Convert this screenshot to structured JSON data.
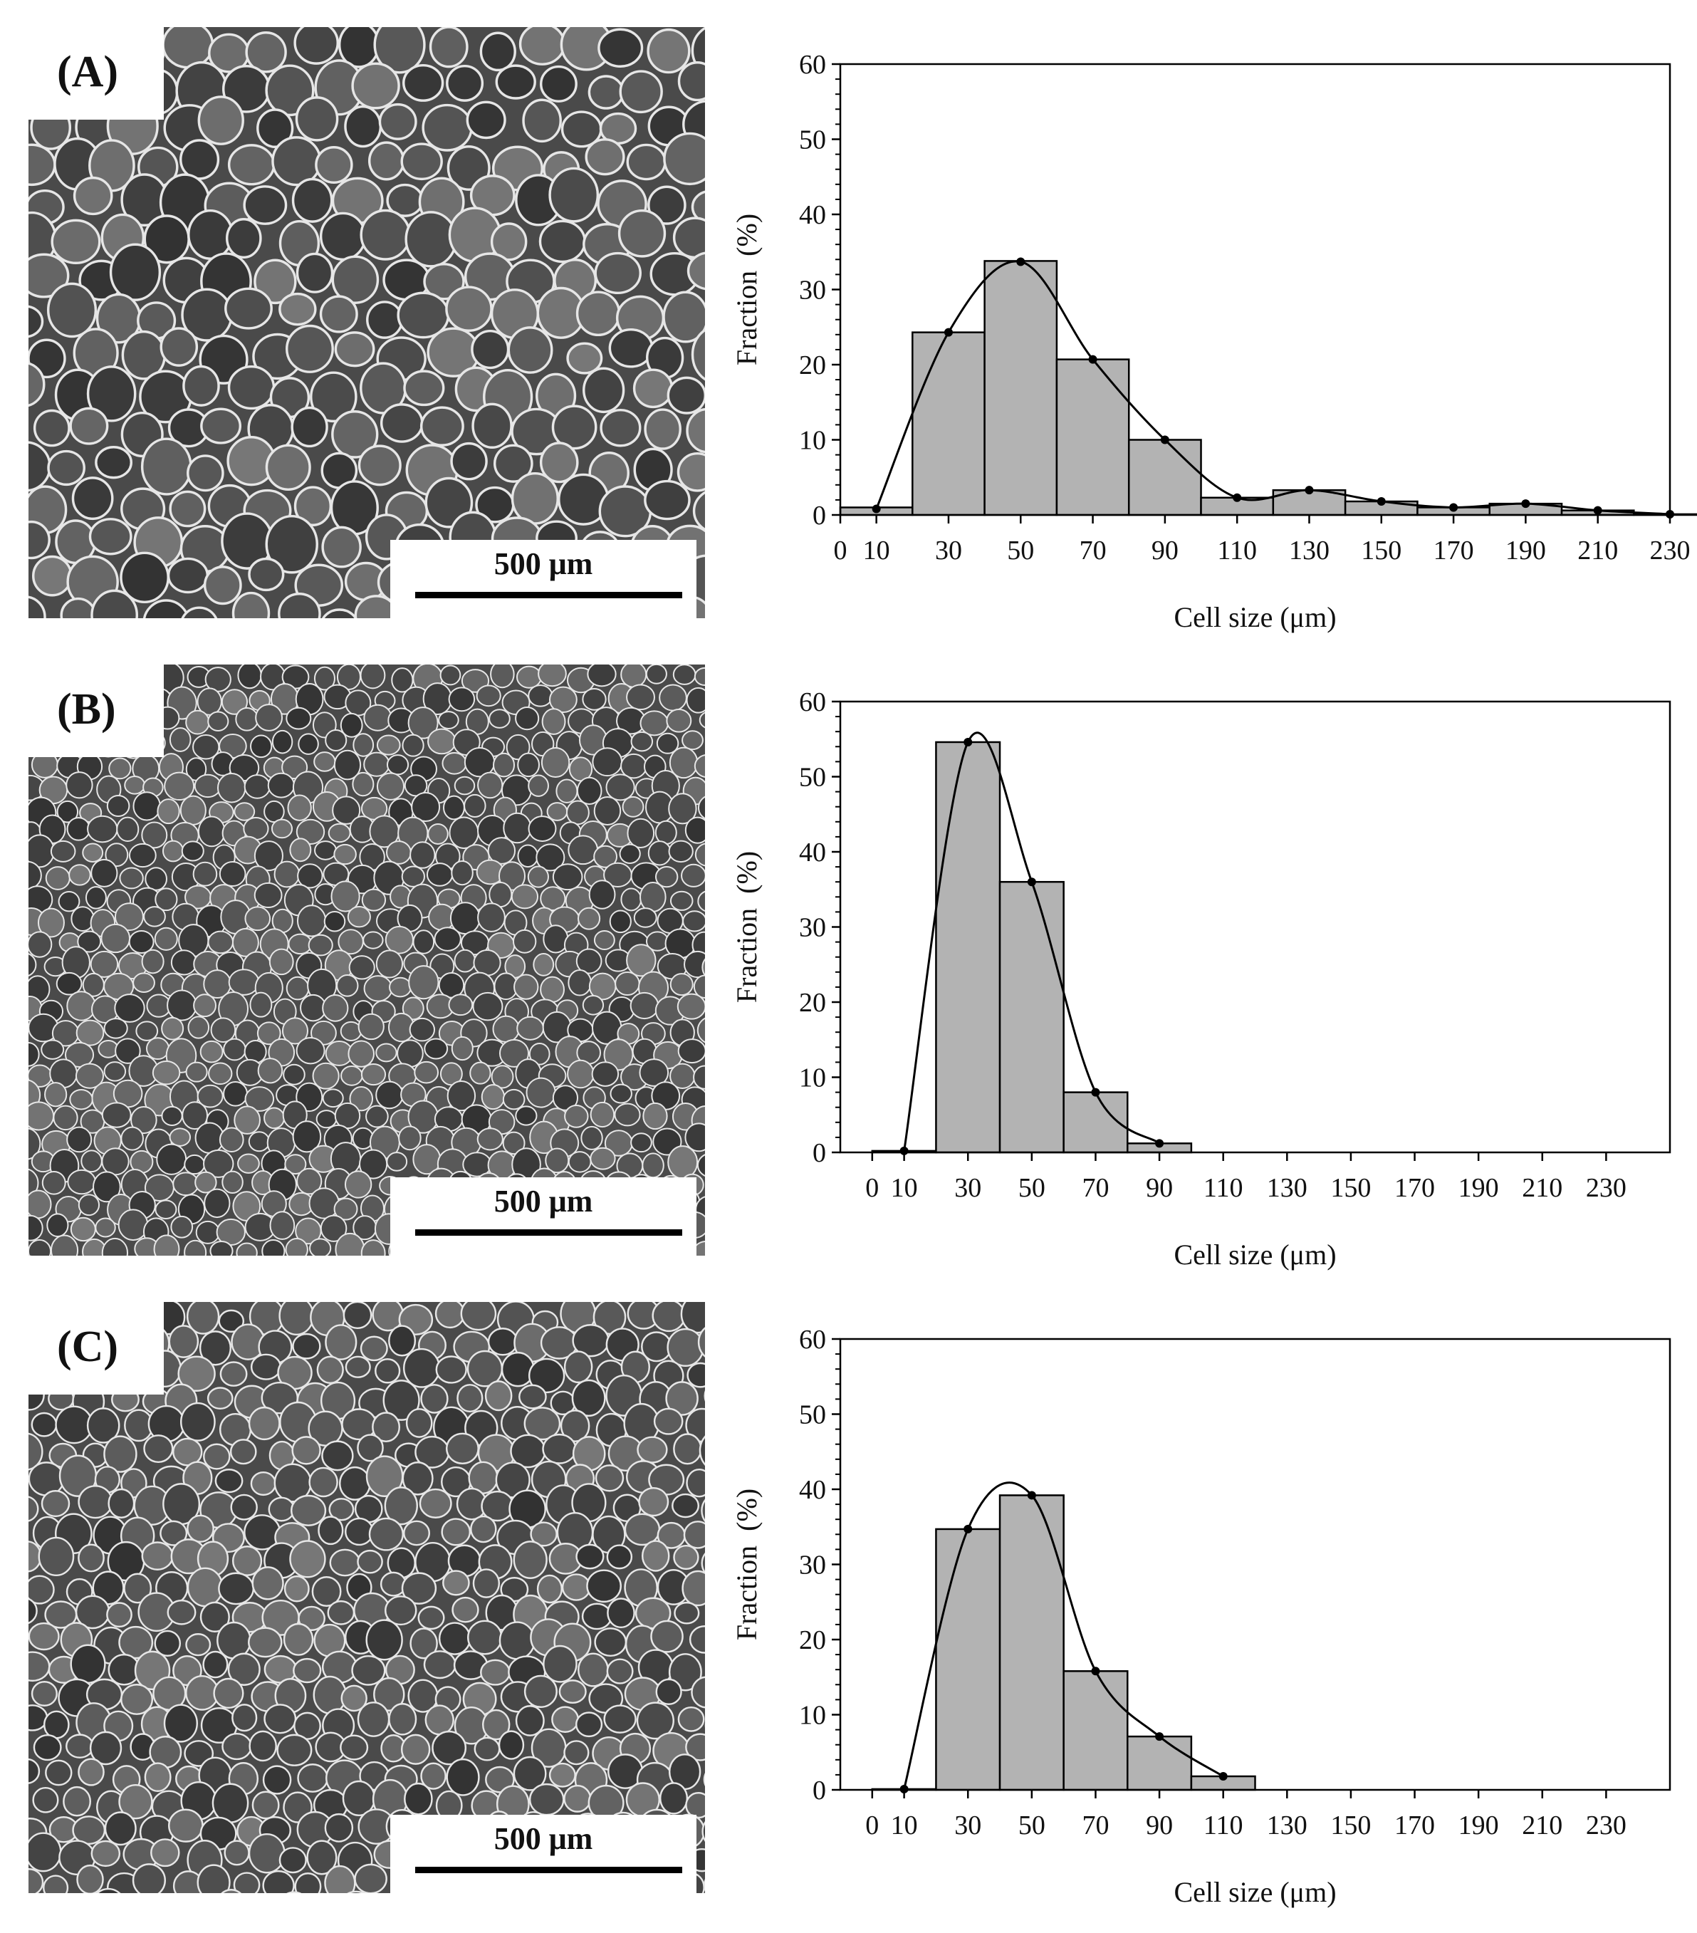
{
  "panels": [
    {
      "label": "(A)",
      "scale_bar": "500 μm"
    },
    {
      "label": "(B)",
      "scale_bar": "500 μm"
    },
    {
      "label": "(C)",
      "scale_bar": "500 μm"
    }
  ],
  "chart_data": [
    {
      "type": "bar",
      "panel": "(A)",
      "xlabel": "Cell size (μm)",
      "ylabel": "Fraction  (%)",
      "ylim": [
        0,
        60
      ],
      "yticks": [
        0,
        10,
        20,
        30,
        40,
        50,
        60
      ],
      "xlim": [
        0,
        230
      ],
      "xticks": [
        0,
        10,
        30,
        50,
        70,
        90,
        110,
        130,
        150,
        170,
        190,
        210,
        230
      ],
      "bin_edges": [
        0,
        20,
        40,
        60,
        80,
        100,
        120,
        140,
        160,
        180,
        200,
        220,
        240
      ],
      "values": [
        1,
        24.3,
        33.8,
        20.7,
        10,
        2.3,
        3.3,
        1.8,
        1,
        1.5,
        0.6,
        0.1
      ],
      "fit_curve": {
        "x": [
          10,
          30,
          50,
          70,
          90,
          110,
          130,
          150,
          170,
          190,
          210,
          230
        ],
        "y": [
          0.8,
          24.3,
          33.7,
          20.7,
          10,
          2.3,
          3.3,
          1.8,
          1,
          1.5,
          0.6,
          0.1
        ]
      },
      "grid": false,
      "color": "#b3b3b3"
    },
    {
      "type": "bar",
      "panel": "(B)",
      "xlabel": "Cell size (μm)",
      "ylabel": "Fraction  (%)",
      "ylim": [
        0,
        60
      ],
      "yticks": [
        0,
        10,
        20,
        30,
        40,
        50,
        60
      ],
      "xlim": [
        -10,
        250
      ],
      "xticks": [
        0,
        10,
        30,
        50,
        70,
        90,
        110,
        130,
        150,
        170,
        190,
        210,
        230
      ],
      "bin_edges": [
        0,
        20,
        40,
        60,
        80,
        100
      ],
      "values": [
        0.2,
        54.6,
        36,
        8,
        1.2
      ],
      "fit_curve": {
        "x": [
          10,
          30,
          50,
          70,
          90
        ],
        "y": [
          0.2,
          54.6,
          36,
          8,
          1.2
        ]
      },
      "grid": false,
      "color": "#b3b3b3"
    },
    {
      "type": "bar",
      "panel": "(C)",
      "xlabel": "Cell size (μm)",
      "ylabel": "Fraction  (%)",
      "ylim": [
        0,
        60
      ],
      "yticks": [
        0,
        10,
        20,
        30,
        40,
        50,
        60
      ],
      "xlim": [
        -10,
        250
      ],
      "xticks": [
        0,
        10,
        30,
        50,
        70,
        90,
        110,
        130,
        150,
        170,
        190,
        210,
        230
      ],
      "bin_edges": [
        0,
        20,
        40,
        60,
        80,
        100,
        120
      ],
      "values": [
        0.1,
        34.7,
        39.2,
        15.8,
        7.1,
        1.8
      ],
      "fit_curve": {
        "x": [
          10,
          30,
          50,
          70,
          90,
          110
        ],
        "y": [
          0.1,
          34.7,
          39.2,
          15.8,
          7.1,
          1.8
        ]
      },
      "grid": false,
      "color": "#b3b3b3"
    }
  ]
}
